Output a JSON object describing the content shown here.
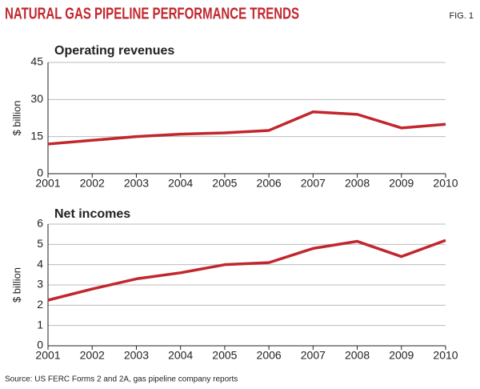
{
  "title": "NATURAL GAS PIPELINE PERFORMANCE TRENDS",
  "figure_label": "FIG. 1",
  "source": "Source: US FERC Forms 2 and 2A, gas pipeline company reports",
  "chart_data": [
    {
      "type": "line",
      "title": "Operating revenues",
      "y_label": "$ billion",
      "x": [
        2001,
        2002,
        2003,
        2004,
        2005,
        2006,
        2007,
        2008,
        2009,
        2010
      ],
      "values": [
        12,
        13.5,
        15,
        16,
        16.5,
        17.5,
        25,
        24,
        18.5,
        20
      ],
      "color": "#c1272d",
      "xlim": [
        2001,
        2010
      ],
      "xticks": [
        2001,
        2002,
        2003,
        2004,
        2005,
        2006,
        2007,
        2008,
        2009,
        2010
      ],
      "ylim": [
        0,
        45
      ],
      "yticks": [
        0,
        15,
        30,
        45
      ],
      "grid": true
    },
    {
      "type": "line",
      "title": "Net incomes",
      "y_label": "$ billion",
      "x": [
        2001,
        2002,
        2003,
        2004,
        2005,
        2006,
        2007,
        2008,
        2009,
        2010
      ],
      "values": [
        2.25,
        2.8,
        3.3,
        3.6,
        4.0,
        4.1,
        4.8,
        5.15,
        4.4,
        5.2
      ],
      "color": "#c1272d",
      "xlim": [
        2001,
        2010
      ],
      "xticks": [
        2001,
        2002,
        2003,
        2004,
        2005,
        2006,
        2007,
        2008,
        2009,
        2010
      ],
      "ylim": [
        0,
        6
      ],
      "yticks": [
        0,
        1,
        2,
        3,
        4,
        5,
        6
      ],
      "grid": true
    }
  ]
}
